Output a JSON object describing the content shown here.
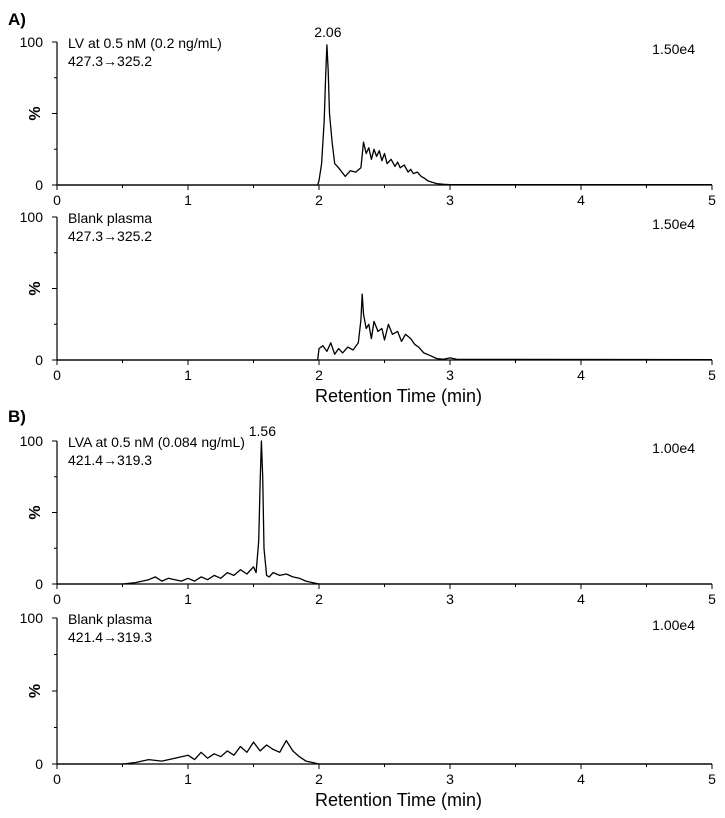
{
  "chart_data": [
    {
      "type": "line",
      "panel_label": "A)",
      "title": "LV at 0.5 nM (0.2 ng/mL)",
      "transition": "427.3→325.2",
      "intensity": "1.50e4",
      "ylabel": "%",
      "xlabel": "",
      "xlim": [
        0,
        5
      ],
      "ylim": [
        0,
        100
      ],
      "x_ticks": [
        "0",
        "1",
        "2",
        "3",
        "4",
        "5"
      ],
      "y_ticks": [
        "0",
        "%",
        "100"
      ],
      "peak_label": "2.06",
      "peak_x": 2.06,
      "series": [
        {
          "x": [
            0,
            1.99,
            2.0,
            2.02,
            2.04,
            2.05,
            2.06,
            2.07,
            2.08,
            2.1,
            2.12,
            2.15,
            2.2,
            2.24,
            2.28,
            2.32,
            2.34,
            2.36,
            2.38,
            2.4,
            2.42,
            2.44,
            2.46,
            2.48,
            2.5,
            2.52,
            2.55,
            2.58,
            2.6,
            2.62,
            2.65,
            2.68,
            2.7,
            2.72,
            2.75,
            2.78,
            2.8,
            2.83,
            2.86,
            2.9,
            2.95,
            3.0,
            5.0
          ],
          "y": [
            0,
            0,
            3,
            15,
            45,
            75,
            98,
            80,
            50,
            30,
            15,
            12,
            6,
            10,
            9,
            12,
            30,
            22,
            26,
            18,
            25,
            20,
            24,
            17,
            22,
            15,
            18,
            13,
            16,
            12,
            14,
            9,
            11,
            8,
            9,
            6,
            5,
            3,
            2,
            1,
            0.5,
            0.3,
            0.3
          ]
        }
      ]
    },
    {
      "type": "line",
      "title": "Blank plasma",
      "transition": "427.3→325.2",
      "intensity": "1.50e4",
      "ylabel": "%",
      "xlabel": "Retention Time (min)",
      "xlim": [
        0,
        5
      ],
      "ylim": [
        0,
        100
      ],
      "x_ticks": [
        "0",
        "1",
        "2",
        "3",
        "4",
        "5"
      ],
      "y_ticks": [
        "0",
        "%",
        "100"
      ],
      "series": [
        {
          "x": [
            0,
            1.99,
            2.0,
            2.03,
            2.06,
            2.09,
            2.12,
            2.15,
            2.18,
            2.22,
            2.26,
            2.3,
            2.32,
            2.33,
            2.34,
            2.36,
            2.38,
            2.4,
            2.42,
            2.45,
            2.48,
            2.5,
            2.53,
            2.56,
            2.6,
            2.63,
            2.66,
            2.7,
            2.73,
            2.76,
            2.8,
            2.85,
            2.9,
            2.95,
            3.0,
            3.05,
            5.0
          ],
          "y": [
            0,
            0,
            8,
            10,
            6,
            12,
            4,
            8,
            5,
            9,
            7,
            12,
            28,
            46,
            32,
            22,
            25,
            15,
            27,
            20,
            22,
            14,
            25,
            18,
            20,
            13,
            18,
            15,
            11,
            9,
            5,
            3,
            1,
            0.5,
            1.5,
            0.5,
            0.3
          ]
        }
      ]
    },
    {
      "type": "line",
      "panel_label": "B)",
      "title": "LVA at 0.5 nM (0.084 ng/mL)",
      "transition": "421.4→319.3",
      "intensity": "1.00e4",
      "ylabel": "%",
      "xlabel": "",
      "xlim": [
        0,
        5
      ],
      "ylim": [
        0,
        100
      ],
      "x_ticks": [
        "0",
        "1",
        "2",
        "3",
        "4",
        "5"
      ],
      "y_ticks": [
        "0",
        "%",
        "100"
      ],
      "peak_label": "1.56",
      "peak_x": 1.56,
      "series": [
        {
          "x": [
            0,
            0.5,
            0.6,
            0.7,
            0.75,
            0.8,
            0.85,
            0.9,
            0.95,
            1.0,
            1.05,
            1.1,
            1.15,
            1.2,
            1.25,
            1.3,
            1.35,
            1.4,
            1.45,
            1.5,
            1.52,
            1.54,
            1.55,
            1.56,
            1.57,
            1.58,
            1.6,
            1.62,
            1.65,
            1.7,
            1.75,
            1.8,
            1.85,
            1.9,
            1.95,
            2.0,
            5.0
          ],
          "y": [
            0,
            0,
            1,
            3,
            5,
            2,
            4,
            3,
            2,
            4,
            2,
            5,
            3,
            6,
            4,
            8,
            6,
            10,
            7,
            12,
            8,
            30,
            70,
            100,
            75,
            25,
            6,
            5,
            8,
            6,
            7,
            5,
            4,
            2,
            1,
            0,
            0
          ]
        }
      ]
    },
    {
      "type": "line",
      "title": "Blank plasma",
      "transition": "421.4→319.3",
      "intensity": "1.00e4",
      "ylabel": "%",
      "xlabel": "Retention Time (min)",
      "xlim": [
        0,
        5
      ],
      "ylim": [
        0,
        100
      ],
      "x_ticks": [
        "0",
        "1",
        "2",
        "3",
        "4",
        "5"
      ],
      "y_ticks": [
        "0",
        "%",
        "100"
      ],
      "series": [
        {
          "x": [
            0,
            0.5,
            0.6,
            0.7,
            0.8,
            0.9,
            1.0,
            1.05,
            1.1,
            1.15,
            1.2,
            1.25,
            1.3,
            1.35,
            1.4,
            1.45,
            1.5,
            1.55,
            1.6,
            1.65,
            1.7,
            1.75,
            1.8,
            1.85,
            1.9,
            1.95,
            2.0,
            5.0
          ],
          "y": [
            0,
            0,
            1,
            3,
            2,
            4,
            6,
            3,
            8,
            4,
            7,
            5,
            9,
            6,
            12,
            8,
            15,
            9,
            13,
            10,
            8,
            16,
            9,
            5,
            2,
            1,
            0,
            0
          ]
        }
      ]
    }
  ]
}
